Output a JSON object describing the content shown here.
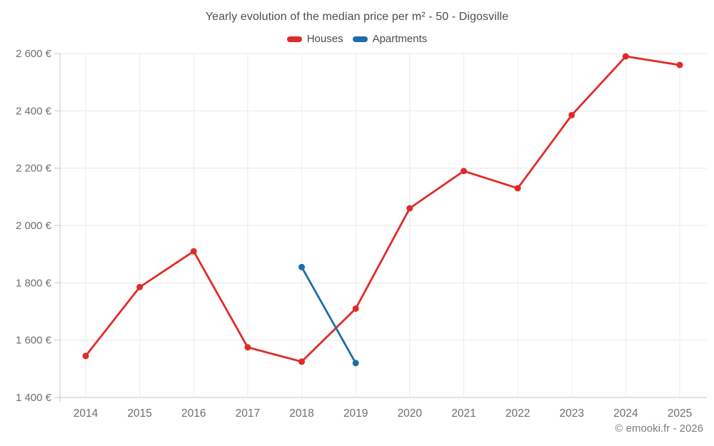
{
  "title": "Yearly evolution of the median price per m² - 50 - Digosville",
  "legend": {
    "items": [
      {
        "label": "Houses",
        "color": "#e02b28"
      },
      {
        "label": "Apartments",
        "color": "#1c6ea6"
      }
    ]
  },
  "footer": {
    "copyright": "© emooki.fr - 2026"
  },
  "colors": {
    "houses": "#e02b28",
    "apartments": "#1c6ea6",
    "grid_horizontal": "#e8e8e8",
    "grid_vertical": "#ededed",
    "axis": "#c9c9c9",
    "tick_label": "#6e6e6e",
    "title_text": "#4d4d4d"
  },
  "chart_data": {
    "type": "line",
    "title": "Yearly evolution of the median price per m² - 50 - Digosville",
    "xlabel": "",
    "ylabel": "",
    "grid": true,
    "legend_position": "top",
    "x": [
      2014,
      2015,
      2016,
      2017,
      2018,
      2019,
      2020,
      2021,
      2022,
      2023,
      2024,
      2025
    ],
    "x_tick_labels": [
      "2014",
      "2015",
      "2016",
      "2017",
      "2018",
      "2019",
      "2020",
      "2021",
      "2022",
      "2023",
      "2024",
      "2025"
    ],
    "ylim": [
      1400,
      2600
    ],
    "y_ticks": [
      {
        "value": 1400,
        "label": "1 400 €"
      },
      {
        "value": 1600,
        "label": "1 600 €"
      },
      {
        "value": 1800,
        "label": "1 800 €"
      },
      {
        "value": 2000,
        "label": "2 000 €"
      },
      {
        "value": 2200,
        "label": "2 200 €"
      },
      {
        "value": 2400,
        "label": "2 400 €"
      },
      {
        "value": 2600,
        "label": "2 600 €"
      }
    ],
    "series": [
      {
        "name": "Houses",
        "color": "#e02b28",
        "points": [
          {
            "x": 2014,
            "y": 1545
          },
          {
            "x": 2015,
            "y": 1785
          },
          {
            "x": 2016,
            "y": 1910
          },
          {
            "x": 2017,
            "y": 1575
          },
          {
            "x": 2018,
            "y": 1525
          },
          {
            "x": 2019,
            "y": 1710
          },
          {
            "x": 2020,
            "y": 2060
          },
          {
            "x": 2021,
            "y": 2190
          },
          {
            "x": 2022,
            "y": 2130
          },
          {
            "x": 2023,
            "y": 2385
          },
          {
            "x": 2024,
            "y": 2590
          },
          {
            "x": 2025,
            "y": 2560
          }
        ]
      },
      {
        "name": "Apartments",
        "color": "#1c6ea6",
        "points": [
          {
            "x": 2018,
            "y": 1855
          },
          {
            "x": 2019,
            "y": 1520
          }
        ]
      }
    ]
  }
}
